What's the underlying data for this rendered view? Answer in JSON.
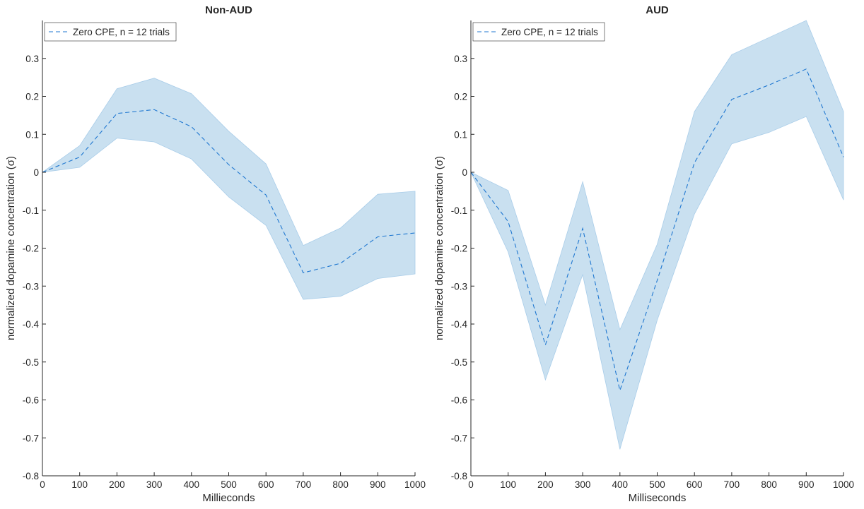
{
  "chart_data": [
    {
      "type": "line",
      "title": "Non-AUD",
      "xlabel": "Millieconds",
      "ylabel": "normalized dopamine concentration (σ)",
      "xlim": [
        0,
        1000
      ],
      "ylim": [
        -0.8,
        0.4
      ],
      "xticks": [
        0,
        100,
        200,
        300,
        400,
        500,
        600,
        700,
        800,
        900,
        1000
      ],
      "yticks": [
        -0.8,
        -0.7,
        -0.6,
        -0.5,
        -0.4,
        -0.3,
        -0.2,
        -0.1,
        0,
        0.1,
        0.2,
        0.3
      ],
      "legend": "top-left",
      "grid": false,
      "series": [
        {
          "name": "Zero CPE, n = 12 trials",
          "style": "dashed",
          "color": "#1f77d0",
          "band_color": "#c9e0f0",
          "x": [
            0,
            100,
            200,
            300,
            400,
            500,
            600,
            700,
            800,
            900,
            1000
          ],
          "y": [
            0,
            0.04,
            0.155,
            0.165,
            0.12,
            0.02,
            -0.06,
            -0.265,
            -0.24,
            -0.17,
            -0.16
          ],
          "upper": [
            0,
            0.07,
            0.22,
            0.248,
            0.207,
            0.108,
            0.022,
            -0.193,
            -0.147,
            -0.058,
            -0.05
          ],
          "lower": [
            0,
            0.013,
            0.09,
            0.08,
            0.035,
            -0.065,
            -0.14,
            -0.335,
            -0.327,
            -0.28,
            -0.268
          ]
        }
      ]
    },
    {
      "type": "line",
      "title": "AUD",
      "xlabel": "Milliseconds",
      "ylabel": "normalized dopamine concentration (σ)",
      "xlim": [
        0,
        1000
      ],
      "ylim": [
        -0.8,
        0.4
      ],
      "xticks": [
        0,
        100,
        200,
        300,
        400,
        500,
        600,
        700,
        800,
        900,
        1000
      ],
      "yticks": [
        -0.8,
        -0.7,
        -0.6,
        -0.5,
        -0.4,
        -0.3,
        -0.2,
        -0.1,
        0,
        0.1,
        0.2,
        0.3
      ],
      "legend": "top-left",
      "grid": false,
      "series": [
        {
          "name": "Zero CPE, n = 12 trials",
          "style": "dashed",
          "color": "#1f77d0",
          "band_color": "#c9e0f0",
          "x": [
            0,
            100,
            200,
            300,
            400,
            500,
            600,
            700,
            800,
            900,
            1000
          ],
          "y": [
            0,
            -0.13,
            -0.455,
            -0.148,
            -0.575,
            -0.285,
            0.025,
            0.192,
            0.23,
            0.272,
            0.04
          ],
          "upper": [
            0,
            -0.048,
            -0.35,
            -0.025,
            -0.415,
            -0.19,
            0.16,
            0.31,
            0.355,
            0.4,
            0.16
          ],
          "lower": [
            0,
            -0.21,
            -0.547,
            -0.27,
            -0.73,
            -0.39,
            -0.11,
            0.075,
            0.105,
            0.147,
            -0.073
          ]
        }
      ]
    }
  ]
}
